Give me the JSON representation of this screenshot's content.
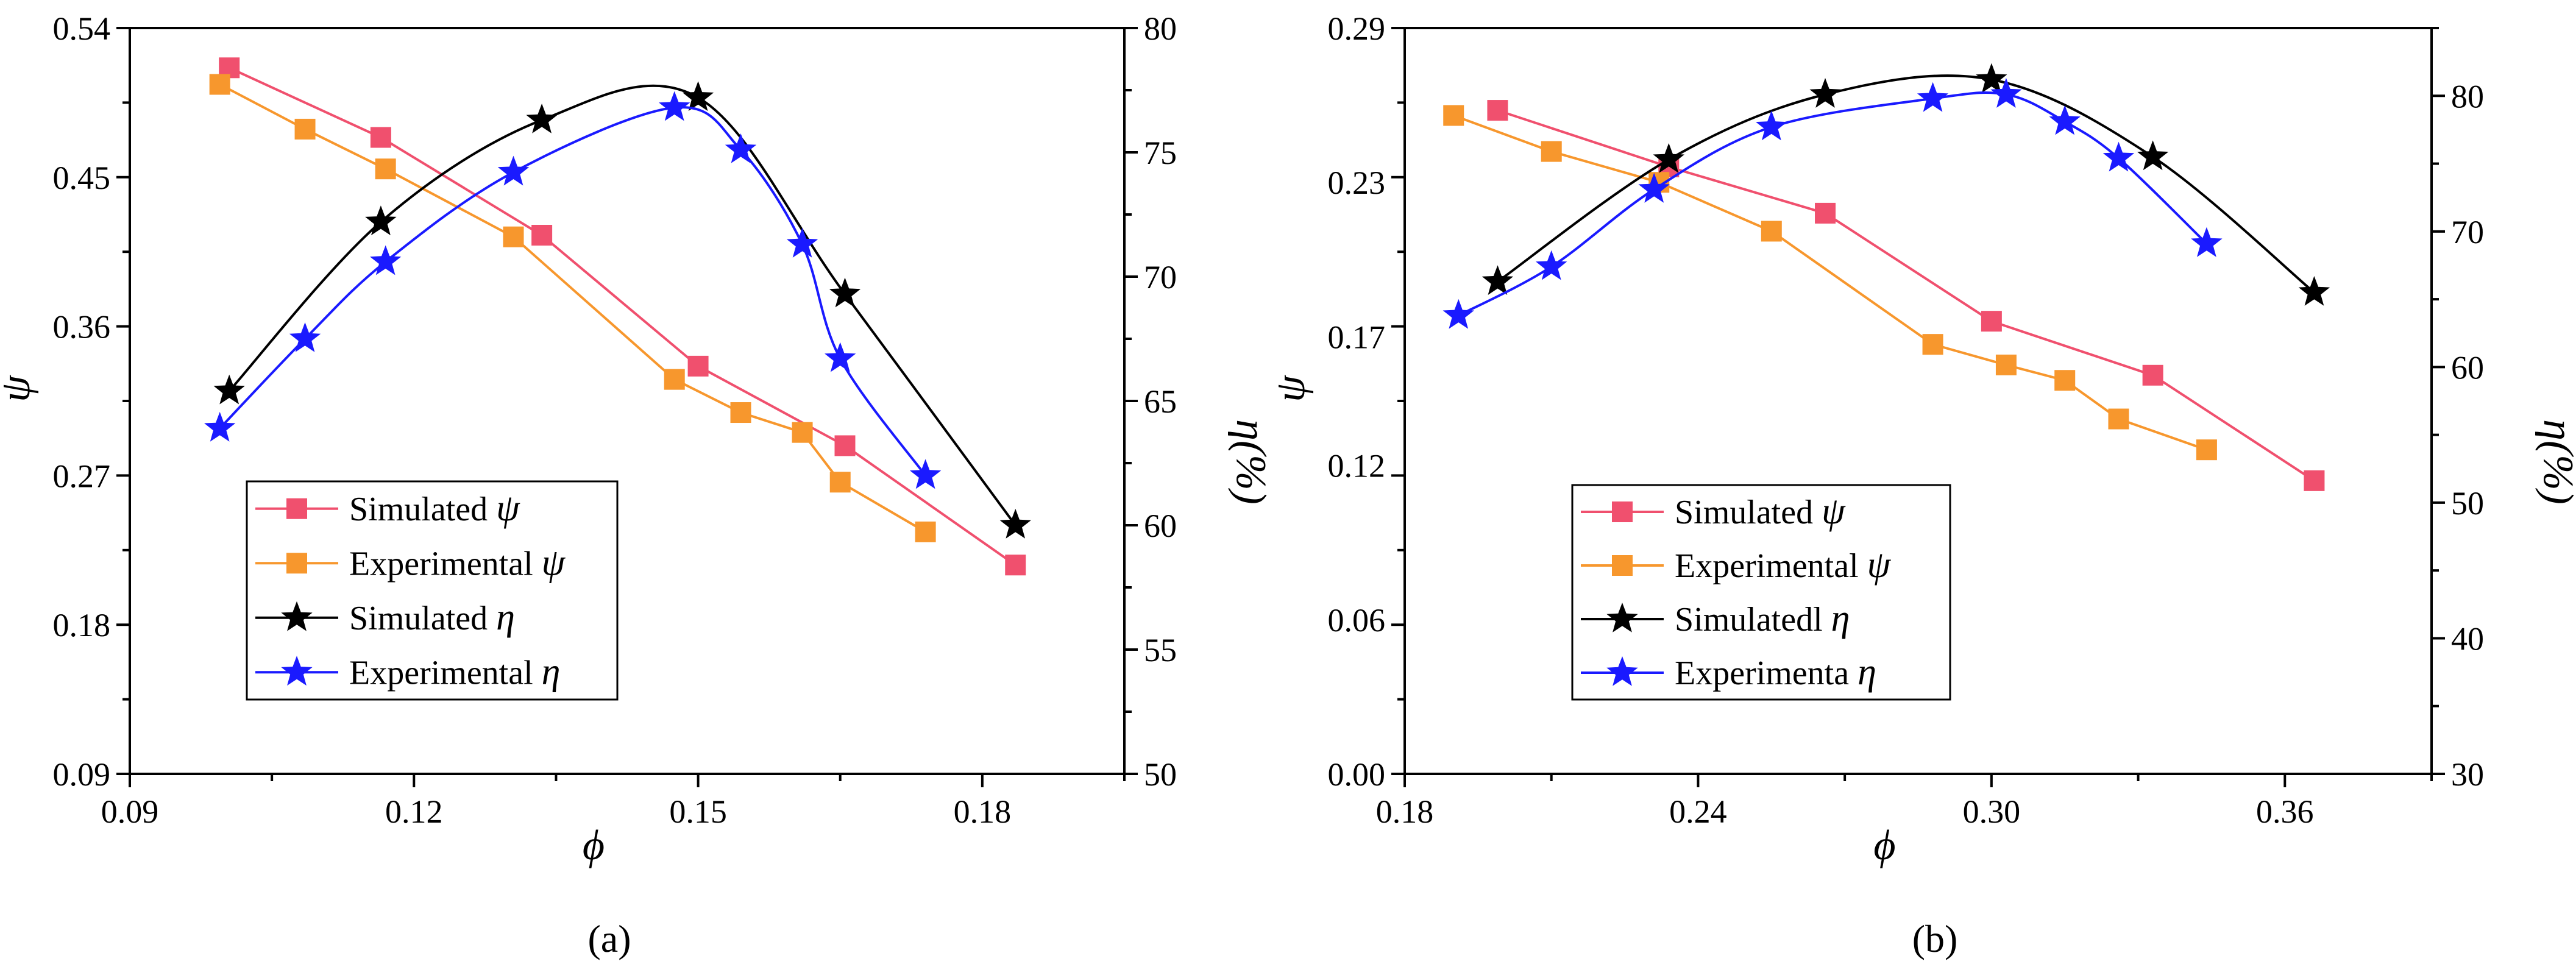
{
  "chart_data": [
    {
      "panel_label": "(a)",
      "type": "line",
      "xlabel": "ϕ",
      "ylabel_left": "ψ",
      "ylabel_right": "η(%)",
      "xlim": [
        0.09,
        0.195
      ],
      "ylim_left": [
        0.09,
        0.54
      ],
      "ylim_right": [
        50,
        80
      ],
      "x_ticks": [
        0.09,
        0.12,
        0.15,
        0.18
      ],
      "x_tick_labels": [
        "0.09",
        "0.12",
        "0.15",
        "0.18"
      ],
      "y_left_ticks": [
        0.09,
        0.18,
        0.27,
        0.36,
        0.45,
        0.54
      ],
      "y_left_tick_labels": [
        "0.09",
        "0.18",
        "0.27",
        "0.36",
        "0.45",
        "0.54"
      ],
      "y_right_ticks": [
        50,
        55,
        60,
        65,
        70,
        75,
        80
      ],
      "y_right_tick_labels": [
        "50",
        "55",
        "60",
        "65",
        "70",
        "75",
        "80"
      ],
      "legend_position": "bottom-left",
      "series": [
        {
          "name": "Simulated ψ",
          "label": "Simulated",
          "sym": "ψ",
          "axis": "left",
          "marker": "square",
          "color": "#f0506e",
          "smooth": false,
          "x": [
            0.1005,
            0.1165,
            0.1335,
            0.15,
            0.1655,
            0.1835
          ],
          "y": [
            0.516,
            0.474,
            0.415,
            0.336,
            0.288,
            0.216
          ]
        },
        {
          "name": "Experimental ψ",
          "label": "Experimental",
          "sym": "ψ",
          "axis": "left",
          "marker": "square",
          "color": "#f7972d",
          "smooth": false,
          "x": [
            0.0995,
            0.1085,
            0.117,
            0.1305,
            0.1475,
            0.1545,
            0.161,
            0.165,
            0.174
          ],
          "y": [
            0.506,
            0.479,
            0.455,
            0.414,
            0.328,
            0.308,
            0.296,
            0.266,
            0.236
          ]
        },
        {
          "name": "Simulated η",
          "label": "Simulated",
          "sym": "η",
          "axis": "right",
          "marker": "star",
          "color": "#000000",
          "smooth": true,
          "x": [
            0.1005,
            0.1165,
            0.1335,
            0.15,
            0.1655,
            0.1835
          ],
          "y": [
            65.4,
            72.2,
            76.3,
            77.2,
            69.3,
            60.0
          ]
        },
        {
          "name": "Experimental η",
          "label": "Experimental",
          "sym": "η",
          "axis": "right",
          "marker": "star",
          "color": "#1a1aff",
          "smooth": true,
          "x": [
            0.0995,
            0.1085,
            0.117,
            0.1305,
            0.1475,
            0.1545,
            0.161,
            0.165,
            0.174
          ],
          "y": [
            63.9,
            67.5,
            70.6,
            74.2,
            76.8,
            75.1,
            71.3,
            66.7,
            62.0
          ]
        }
      ]
    },
    {
      "panel_label": "(b)",
      "type": "line",
      "xlabel": "ϕ",
      "ylabel_left": "ψ",
      "ylabel_right": "η(%)",
      "xlim": [
        0.18,
        0.39
      ],
      "ylim_left": [
        0.0,
        0.29
      ],
      "ylim_right": [
        30,
        85
      ],
      "x_ticks": [
        0.18,
        0.24,
        0.3,
        0.36
      ],
      "x_tick_labels": [
        "0.18",
        "0.24",
        "0.30",
        "0.36"
      ],
      "y_left_ticks": [
        0.0,
        0.06,
        0.12,
        0.17,
        0.23,
        0.29
      ],
      "y_left_tick_labels": [
        "0.00",
        "0.06",
        "0.12",
        "0.17",
        "0.23",
        "0.29"
      ],
      "y_right_ticks": [
        30,
        40,
        50,
        60,
        70,
        80
      ],
      "y_right_tick_labels": [
        "30",
        "40",
        "50",
        "60",
        "70",
        "80"
      ],
      "legend_position": "bottom-left",
      "series": [
        {
          "name": "Simulated ψ",
          "label": "Simulated",
          "sym": "ψ",
          "axis": "left",
          "marker": "square",
          "color": "#f0506e",
          "smooth": false,
          "x": [
            0.199,
            0.234,
            0.266,
            0.3,
            0.333,
            0.366
          ],
          "y": [
            0.258,
            0.236,
            0.218,
            0.176,
            0.155,
            0.114
          ]
        },
        {
          "name": "Experimental ψ",
          "label": "Experimental",
          "sym": "ψ",
          "axis": "left",
          "marker": "square",
          "color": "#f7972d",
          "smooth": false,
          "x": [
            0.19,
            0.21,
            0.232,
            0.255,
            0.288,
            0.303,
            0.315,
            0.326,
            0.344
          ],
          "y": [
            0.256,
            0.242,
            0.23,
            0.211,
            0.167,
            0.159,
            0.153,
            0.138,
            0.126
          ]
        },
        {
          "name": "Simulatedl η",
          "label": "Simulatedl",
          "sym": "η",
          "axis": "right",
          "marker": "star",
          "color": "#000000",
          "smooth": true,
          "x": [
            0.199,
            0.234,
            0.266,
            0.3,
            0.333,
            0.366
          ],
          "y": [
            66.3,
            75.3,
            80.1,
            81.2,
            75.5,
            65.5
          ]
        },
        {
          "name": "Experimenta η",
          "label": "Experimenta",
          "sym": "η",
          "axis": "right",
          "marker": "star",
          "color": "#1a1aff",
          "smooth": true,
          "x": [
            0.191,
            0.21,
            0.231,
            0.255,
            0.288,
            0.303,
            0.315,
            0.326,
            0.344
          ],
          "y": [
            63.8,
            67.4,
            73.1,
            77.7,
            79.8,
            80.1,
            78.1,
            75.4,
            69.1
          ]
        }
      ]
    }
  ]
}
